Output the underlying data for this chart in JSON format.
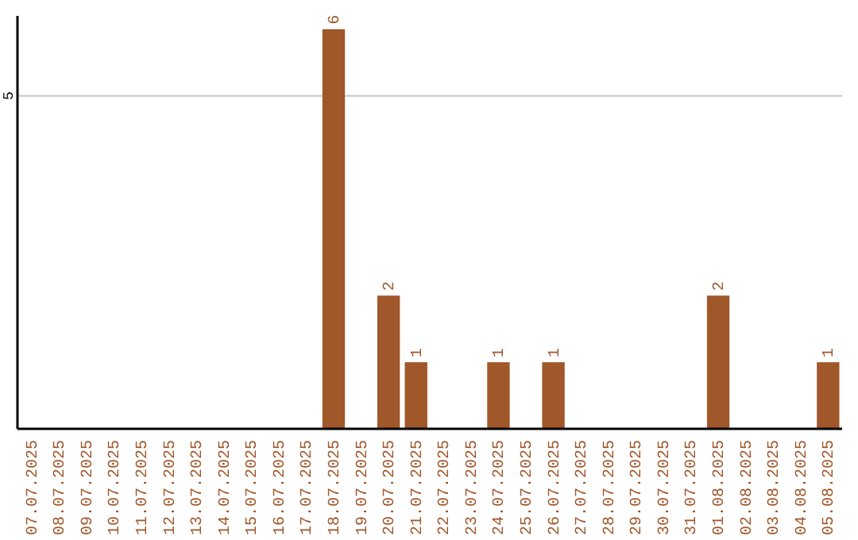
{
  "chart_data": {
    "type": "bar",
    "categories": [
      "07.07.2025",
      "08.07.2025",
      "09.07.2025",
      "10.07.2025",
      "11.07.2025",
      "12.07.2025",
      "13.07.2025",
      "14.07.2025",
      "15.07.2025",
      "16.07.2025",
      "17.07.2025",
      "18.07.2025",
      "19.07.2025",
      "20.07.2025",
      "21.07.2025",
      "22.07.2025",
      "23.07.2025",
      "24.07.2025",
      "25.07.2025",
      "26.07.2025",
      "27.07.2025",
      "28.07.2025",
      "29.07.2025",
      "30.07.2025",
      "31.07.2025",
      "01.08.2025",
      "02.08.2025",
      "03.08.2025",
      "04.08.2025",
      "05.08.2025"
    ],
    "values": [
      0,
      0,
      0,
      0,
      0,
      0,
      0,
      0,
      0,
      0,
      0,
      6,
      0,
      2,
      1,
      0,
      0,
      1,
      0,
      1,
      0,
      0,
      0,
      0,
      0,
      2,
      0,
      0,
      0,
      1
    ],
    "value_labels": [
      null,
      null,
      null,
      null,
      null,
      null,
      null,
      null,
      null,
      null,
      null,
      "6",
      null,
      "2",
      "1",
      null,
      null,
      "1",
      null,
      "1",
      null,
      null,
      null,
      null,
      null,
      "2",
      null,
      null,
      null,
      "1"
    ],
    "color": "#a0572a",
    "ylim": [
      0,
      6.2
    ],
    "yticks": [
      5
    ],
    "grid": "y"
  }
}
